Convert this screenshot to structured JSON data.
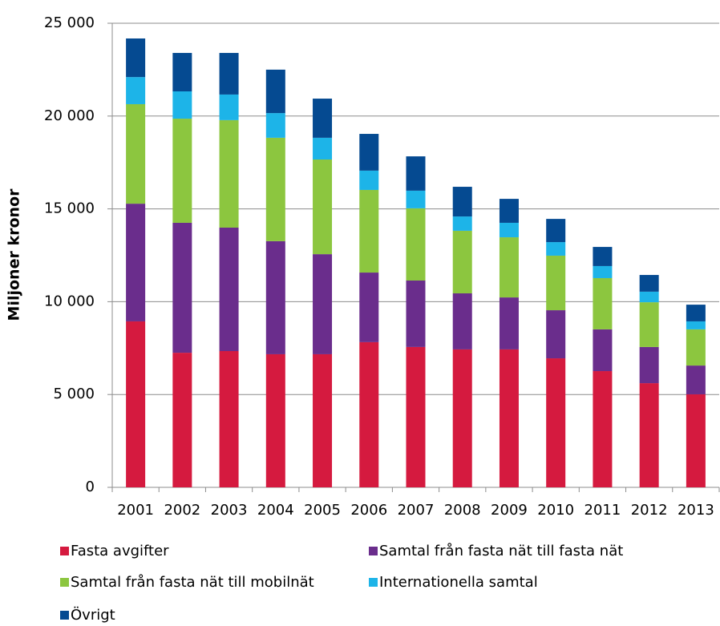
{
  "chart_data": {
    "type": "stacked_bar",
    "y_label": "Miljoner kronor",
    "categories": [
      "2001",
      "2002",
      "2003",
      "2004",
      "2005",
      "2006",
      "2007",
      "2008",
      "2009",
      "2010",
      "2011",
      "2012",
      "2013"
    ],
    "series": [
      {
        "name": "Fasta avgifter",
        "color": "#d51a3f",
        "values": [
          8940,
          7250,
          7340,
          7170,
          7170,
          7820,
          7560,
          7430,
          7430,
          6950,
          6260,
          5610,
          5010
        ]
      },
      {
        "name": "Samtal från fasta nät till fasta nät",
        "color": "#6a2d8c",
        "values": [
          6340,
          7000,
          6650,
          6090,
          5390,
          3750,
          3580,
          3020,
          2800,
          2590,
          2250,
          1950,
          1550
        ]
      },
      {
        "name": "Samtal från fasta nät till mobilnät",
        "color": "#8cc63f",
        "values": [
          5360,
          5610,
          5790,
          5570,
          5100,
          4450,
          3890,
          3370,
          3240,
          2940,
          2760,
          2410,
          1950
        ]
      },
      {
        "name": "Internationella samtal",
        "color": "#1db4e8",
        "values": [
          1460,
          1470,
          1380,
          1330,
          1170,
          1040,
          950,
          770,
          780,
          730,
          650,
          570,
          430
        ]
      },
      {
        "name": "Övrigt",
        "color": "#054a91",
        "values": [
          2080,
          2070,
          2240,
          2340,
          2110,
          1980,
          1850,
          1600,
          1290,
          1250,
          1030,
          900,
          900
        ]
      }
    ],
    "ylim": [
      0,
      25000
    ],
    "yticks": [
      0,
      {
        "value": 5000,
        "label": "5 000"
      },
      {
        "value": 10000,
        "label": "10 000"
      },
      {
        "value": 15000,
        "label": "15 000"
      },
      {
        "value": 20000,
        "label": "20 000"
      },
      {
        "value": 25000,
        "label": "25 000"
      }
    ],
    "grid": true
  }
}
